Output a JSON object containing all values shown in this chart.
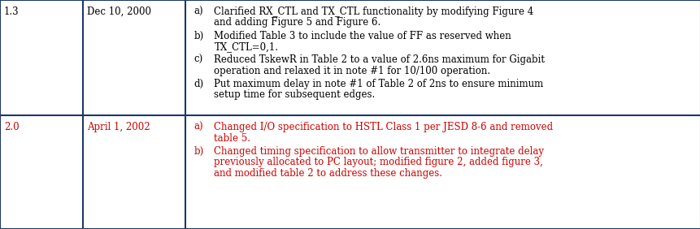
{
  "figsize": [
    8.62,
    2.82
  ],
  "dpi": 100,
  "bg_color": "#ffffff",
  "border_color": "#1f3864",
  "border_lw": 1.5,
  "black": "#000000",
  "red": "#cc0000",
  "font_size": 8.5,
  "col_bounds": [
    0.0,
    0.118,
    0.265,
    1.0
  ],
  "row_split": 0.495,
  "rows": [
    {
      "version": "1.3",
      "version_color": "#000000",
      "date": "Dec 10, 2000",
      "date_color": "#000000",
      "items": [
        {
          "label": "a)",
          "lines": [
            "Clarified RX_CTL and TX_CTL functionality by modifying Figure 4",
            "and adding Figure 5 and Figure 6."
          ],
          "color": "#000000"
        },
        {
          "label": "b)",
          "lines": [
            "Modified Table 3 to include the value of FF as reserved when",
            "TX_CTL=0,1."
          ],
          "color": "#000000"
        },
        {
          "label": "c)",
          "lines": [
            "Reduced TskewR in Table 2 to a value of 2.6ns maximum for Gigabit",
            "operation and relaxed it in note #1 for 10/100 operation."
          ],
          "color": "#000000"
        },
        {
          "label": "d)",
          "lines": [
            "Put maximum delay in note #1 of Table 2 of 2ns to ensure minimum",
            "setup time for subsequent edges."
          ],
          "color": "#000000"
        }
      ]
    },
    {
      "version": "2.0",
      "version_color": "#cc0000",
      "date": "April 1, 2002",
      "date_color": "#cc0000",
      "items": [
        {
          "label": "a)",
          "lines": [
            "Changed I/O specification to HSTL Class 1 per JESD 8-6 and removed",
            "table 5."
          ],
          "color": "#cc0000"
        },
        {
          "label": "b)",
          "lines": [
            "Changed timing specification to allow transmitter to integrate delay",
            "previously allocated to PC layout; modified figure 2, added figure 3,",
            "and modified table 2 to address these changes."
          ],
          "color": "#cc0000"
        }
      ]
    }
  ]
}
